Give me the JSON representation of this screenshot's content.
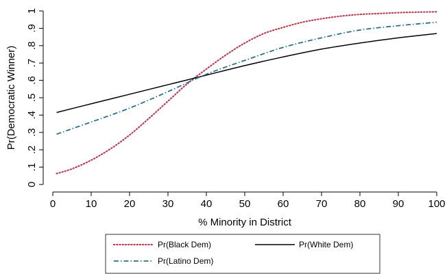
{
  "chart_data": {
    "type": "line",
    "title": "",
    "xlabel": "% Minority in District",
    "ylabel": "Pr(Democratic Winner)",
    "xlim": [
      0,
      100
    ],
    "ylim": [
      0,
      1
    ],
    "x_ticks": [
      "0",
      "10",
      "20",
      "30",
      "40",
      "50",
      "60",
      "70",
      "80",
      "90",
      "100"
    ],
    "y_ticks": [
      "0",
      ".1",
      ".2",
      ".3",
      ".4",
      ".5",
      ".6",
      ".7",
      ".8",
      ".9",
      "1"
    ],
    "grid": false,
    "legend_position": "bottom",
    "series": [
      {
        "name": "Pr(Black Dem)",
        "color": "#c0394e",
        "style": "dotted",
        "x": [
          1,
          5,
          10,
          15,
          20,
          25,
          30,
          35,
          40,
          45,
          50,
          55,
          60,
          65,
          70,
          75,
          80,
          85,
          90,
          95,
          100
        ],
        "y": [
          0.063,
          0.09,
          0.14,
          0.205,
          0.285,
          0.38,
          0.48,
          0.58,
          0.665,
          0.745,
          0.815,
          0.87,
          0.905,
          0.935,
          0.955,
          0.97,
          0.98,
          0.985,
          0.99,
          0.993,
          0.995
        ]
      },
      {
        "name": "Pr(White Dem)",
        "color": "#000000",
        "style": "solid",
        "x": [
          1,
          10,
          20,
          30,
          40,
          50,
          60,
          70,
          80,
          90,
          100
        ],
        "y": [
          0.415,
          0.465,
          0.52,
          0.575,
          0.63,
          0.685,
          0.735,
          0.78,
          0.815,
          0.845,
          0.87
        ]
      },
      {
        "name": "Pr(Latino Dem)",
        "color": "#2b6f8a",
        "style": "dashdot",
        "x": [
          1,
          10,
          20,
          30,
          40,
          50,
          60,
          70,
          80,
          90,
          100
        ],
        "y": [
          0.29,
          0.36,
          0.44,
          0.535,
          0.635,
          0.715,
          0.79,
          0.845,
          0.89,
          0.915,
          0.935
        ]
      }
    ]
  }
}
